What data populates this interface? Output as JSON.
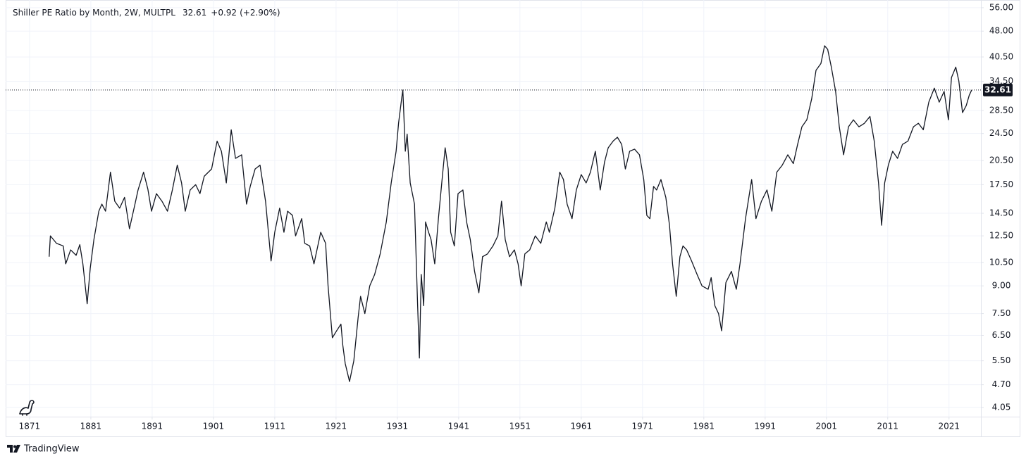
{
  "chart_data": {
    "type": "line",
    "title": "Shiller PE Ratio by Month, 2W, MULTPL",
    "last_value": 32.61,
    "change": "+0.92",
    "change_percent": "(+2.90%)",
    "brand": "TradingView",
    "color": "#131722",
    "log_scale": true,
    "grid": true,
    "xlim": [
      1867.1,
      2026.2
    ],
    "xticks": [
      1871,
      1881,
      1891,
      1901,
      1911,
      1921,
      1931,
      1941,
      1951,
      1961,
      1971,
      1981,
      1991,
      2001,
      2011,
      2021
    ],
    "ylim": [
      3.81,
      58.9
    ],
    "yticks": [
      {
        "value": 4.05,
        "label": "4.05"
      },
      {
        "value": 4.7,
        "label": "4.70"
      },
      {
        "value": 5.5,
        "label": "5.50"
      },
      {
        "value": 6.5,
        "label": "6.50"
      },
      {
        "value": 7.5,
        "label": "7.50"
      },
      {
        "value": 9,
        "label": "9.00"
      },
      {
        "value": 10.5,
        "label": "10.50"
      },
      {
        "value": 12.5,
        "label": "12.50"
      },
      {
        "value": 14.5,
        "label": "14.50"
      },
      {
        "value": 17.5,
        "label": "17.50"
      },
      {
        "value": 20.5,
        "label": "20.50"
      },
      {
        "value": 24.5,
        "label": "24.50"
      },
      {
        "value": 28.5,
        "label": "28.50"
      },
      {
        "value": 34.5,
        "label": "34.50"
      },
      {
        "value": 40.5,
        "label": "40.50"
      },
      {
        "value": 48,
        "label": "48.00"
      },
      {
        "value": 56,
        "label": "56.00"
      }
    ],
    "x": [
      1874.2,
      1874.4,
      1875.4,
      1876.5,
      1876.9,
      1877.7,
      1878.6,
      1879.2,
      1879.7,
      1880.4,
      1880.9,
      1881.5,
      1882.3,
      1882.8,
      1883.4,
      1884.2,
      1884.9,
      1885.7,
      1886.5,
      1887.3,
      1888.2,
      1888.7,
      1889.6,
      1890.3,
      1890.9,
      1891.7,
      1892.6,
      1893.5,
      1894.3,
      1895.1,
      1895.8,
      1896.4,
      1897.2,
      1898.1,
      1898.8,
      1899.5,
      1900.7,
      1901.6,
      1902.3,
      1903.1,
      1903.9,
      1904.6,
      1905.6,
      1906.4,
      1907.0,
      1907.8,
      1908.6,
      1909.5,
      1910.4,
      1911.0,
      1911.8,
      1912.5,
      1913.1,
      1913.9,
      1914.4,
      1915.4,
      1915.9,
      1916.7,
      1917.4,
      1918.5,
      1919.3,
      1919.7,
      1920.4,
      1921.1,
      1921.8,
      1922.1,
      1922.5,
      1923.2,
      1923.9,
      1924.6,
      1925.0,
      1925.7,
      1926.5,
      1927.3,
      1928.2,
      1929.2,
      1930.0,
      1930.8,
      1931.2,
      1931.7,
      1931.9,
      1932.3,
      1932.6,
      1933.1,
      1933.8,
      1934.3,
      1934.6,
      1934.9,
      1935.3,
      1935.6,
      1936.1,
      1936.5,
      1937.1,
      1937.7,
      1938.3,
      1938.8,
      1939.3,
      1939.7,
      1940.3,
      1940.9,
      1941.7,
      1942.3,
      1942.9,
      1943.6,
      1944.3,
      1944.9,
      1945.7,
      1946.6,
      1947.4,
      1948.0,
      1948.6,
      1949.3,
      1950.1,
      1950.7,
      1951.2,
      1951.8,
      1952.6,
      1953.5,
      1954.4,
      1955.3,
      1955.8,
      1956.7,
      1957.5,
      1958.1,
      1958.7,
      1959.5,
      1960.2,
      1961.0,
      1961.8,
      1962.5,
      1963.3,
      1964.1,
      1964.8,
      1965.4,
      1966.2,
      1966.9,
      1967.6,
      1968.2,
      1968.9,
      1969.7,
      1970.5,
      1971.2,
      1971.7,
      1972.2,
      1972.8,
      1973.3,
      1974.0,
      1974.8,
      1975.4,
      1975.9,
      1976.5,
      1977.1,
      1977.6,
      1978.2,
      1979.0,
      1979.9,
      1980.7,
      1981.7,
      1982.2,
      1982.8,
      1983.4,
      1983.9,
      1984.6,
      1985.5,
      1986.3,
      1986.9,
      1987.8,
      1988.8,
      1989.5,
      1990.4,
      1991.3,
      1992.1,
      1992.9,
      1993.8,
      1994.7,
      1995.6,
      1996.3,
      1997.0,
      1997.8,
      1998.6,
      1999.3,
      2000.1,
      2000.7,
      2001.2,
      2001.8,
      2002.5,
      2003.1,
      2003.8,
      2004.6,
      2005.4,
      2006.3,
      2007.2,
      2008.1,
      2008.8,
      2009.5,
      2010.0,
      2010.5,
      2011.1,
      2011.8,
      2012.6,
      2013.4,
      2014.3,
      2015.2,
      2016.0,
      2016.8,
      2017.7,
      2018.6,
      2019.4,
      2020.2,
      2020.9,
      2021.4,
      2022.1,
      2022.6,
      2023.2,
      2023.8,
      2024.3,
      2024.7
    ],
    "values": [
      10.9,
      12.5,
      11.9,
      11.7,
      10.4,
      11.4,
      11.0,
      11.8,
      10.4,
      8.0,
      10.1,
      12.2,
      14.7,
      15.4,
      14.7,
      19.0,
      15.7,
      15.0,
      16.1,
      13.1,
      15.4,
      16.9,
      19.0,
      17.0,
      14.7,
      16.5,
      15.7,
      14.7,
      16.9,
      19.9,
      17.7,
      14.7,
      16.9,
      17.5,
      16.5,
      18.5,
      19.4,
      23.3,
      21.8,
      17.7,
      25.1,
      20.8,
      21.3,
      15.4,
      17.3,
      19.4,
      19.9,
      15.7,
      10.6,
      12.8,
      15.0,
      12.8,
      14.7,
      14.3,
      12.5,
      14.0,
      11.9,
      11.7,
      10.4,
      12.8,
      11.9,
      9.0,
      6.4,
      6.7,
      7.0,
      6.1,
      5.4,
      4.8,
      5.5,
      7.3,
      8.4,
      7.5,
      9.0,
      9.7,
      11.1,
      13.7,
      17.7,
      21.8,
      26.2,
      30.8,
      32.6,
      21.8,
      24.4,
      17.7,
      15.4,
      8.0,
      5.6,
      9.7,
      7.9,
      13.7,
      12.8,
      12.2,
      10.4,
      14.0,
      18.1,
      22.3,
      19.4,
      12.8,
      11.7,
      16.5,
      16.9,
      13.7,
      12.2,
      9.9,
      8.6,
      10.9,
      11.1,
      11.7,
      12.5,
      15.7,
      12.2,
      10.9,
      11.4,
      10.4,
      9.0,
      11.1,
      11.4,
      12.5,
      11.9,
      13.7,
      12.8,
      15.0,
      19.0,
      18.1,
      15.4,
      14.0,
      16.9,
      18.7,
      17.7,
      19.0,
      21.8,
      16.9,
      20.3,
      22.3,
      23.3,
      23.9,
      22.8,
      19.4,
      21.8,
      22.1,
      21.3,
      18.1,
      14.3,
      14.0,
      17.3,
      16.9,
      18.1,
      16.1,
      13.4,
      10.4,
      8.4,
      10.9,
      11.7,
      11.4,
      10.6,
      9.7,
      9.0,
      8.8,
      9.5,
      7.9,
      7.5,
      6.7,
      9.2,
      9.9,
      8.8,
      10.4,
      14.0,
      18.1,
      14.0,
      15.7,
      16.9,
      14.7,
      19.0,
      19.9,
      21.3,
      20.1,
      22.8,
      25.6,
      26.8,
      30.8,
      37.1,
      38.8,
      43.6,
      42.6,
      37.9,
      32.3,
      25.6,
      21.3,
      25.6,
      26.8,
      25.6,
      26.2,
      27.4,
      23.3,
      17.7,
      13.4,
      17.7,
      19.9,
      21.8,
      20.8,
      22.8,
      23.3,
      25.6,
      26.2,
      25.1,
      30.1,
      33.0,
      30.1,
      32.3,
      26.8,
      35.4,
      37.9,
      34.6,
      28.1,
      29.4,
      31.5,
      32.61
    ]
  }
}
